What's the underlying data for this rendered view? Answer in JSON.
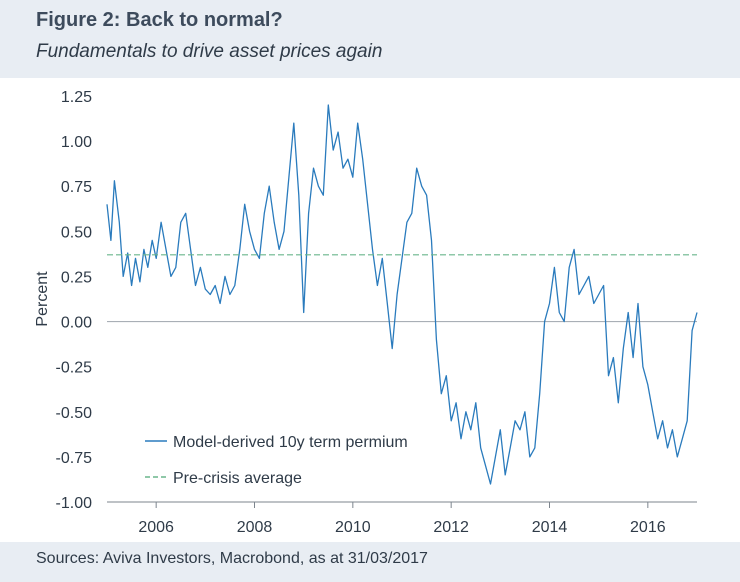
{
  "figure": {
    "title": "Figure 2: Back to normal?",
    "subtitle": "Fundamentals to drive asset prices again",
    "source": "Sources: Aviva Investors, Macrobond, as at 31/03/2017"
  },
  "colors": {
    "background": "#e8edf3",
    "series": "#2a7bbd",
    "average": "#6ab58c",
    "zero_line": "#a9afb6",
    "text": "#2f3b48"
  },
  "chart_data": {
    "type": "line",
    "title": "",
    "xlabel": "",
    "ylabel": "Percent",
    "xlim": [
      2005.0,
      2017.0
    ],
    "ylim": [
      -1.0,
      1.25
    ],
    "x_ticks": [
      2006,
      2008,
      2010,
      2012,
      2014,
      2016
    ],
    "x_tick_labels": [
      "2006",
      "2008",
      "2010",
      "2012",
      "2014",
      "2016"
    ],
    "y_ticks": [
      1.25,
      1.0,
      0.75,
      0.5,
      0.25,
      0.0,
      -0.25,
      -0.5,
      -0.75,
      -1.0
    ],
    "y_tick_labels": [
      "1.25",
      "1.00",
      "0.75",
      "0.50",
      "0.25",
      "0.00",
      "-0.25",
      "-0.50",
      "-0.75",
      "-1.00"
    ],
    "grid": false,
    "legend_position": "bottom-left",
    "series": [
      {
        "name": "Model-derived 10y term permium",
        "color": "#2a7bbd",
        "style": "solid",
        "x": [
          2005.0,
          2005.08,
          2005.15,
          2005.25,
          2005.33,
          2005.42,
          2005.5,
          2005.58,
          2005.67,
          2005.75,
          2005.83,
          2005.92,
          2006.0,
          2006.1,
          2006.2,
          2006.3,
          2006.4,
          2006.5,
          2006.6,
          2006.7,
          2006.8,
          2006.9,
          2007.0,
          2007.1,
          2007.2,
          2007.3,
          2007.4,
          2007.5,
          2007.6,
          2007.7,
          2007.8,
          2007.9,
          2008.0,
          2008.1,
          2008.2,
          2008.3,
          2008.4,
          2008.5,
          2008.6,
          2008.7,
          2008.8,
          2008.9,
          2009.0,
          2009.1,
          2009.2,
          2009.3,
          2009.4,
          2009.5,
          2009.6,
          2009.7,
          2009.8,
          2009.9,
          2010.0,
          2010.1,
          2010.2,
          2010.3,
          2010.4,
          2010.5,
          2010.6,
          2010.7,
          2010.8,
          2010.9,
          2011.0,
          2011.1,
          2011.2,
          2011.3,
          2011.4,
          2011.5,
          2011.6,
          2011.7,
          2011.8,
          2011.9,
          2012.0,
          2012.1,
          2012.2,
          2012.3,
          2012.4,
          2012.5,
          2012.6,
          2012.7,
          2012.8,
          2012.9,
          2013.0,
          2013.1,
          2013.2,
          2013.3,
          2013.4,
          2013.5,
          2013.6,
          2013.7,
          2013.8,
          2013.9,
          2014.0,
          2014.1,
          2014.2,
          2014.3,
          2014.4,
          2014.5,
          2014.6,
          2014.7,
          2014.8,
          2014.9,
          2015.0,
          2015.1,
          2015.2,
          2015.3,
          2015.4,
          2015.5,
          2015.6,
          2015.7,
          2015.8,
          2015.9,
          2016.0,
          2016.1,
          2016.2,
          2016.3,
          2016.4,
          2016.5,
          2016.6,
          2016.7,
          2016.8,
          2016.9,
          2017.0
        ],
        "values": [
          0.65,
          0.45,
          0.78,
          0.55,
          0.25,
          0.38,
          0.2,
          0.35,
          0.22,
          0.4,
          0.3,
          0.45,
          0.35,
          0.55,
          0.4,
          0.25,
          0.3,
          0.55,
          0.6,
          0.4,
          0.2,
          0.3,
          0.18,
          0.15,
          0.2,
          0.1,
          0.25,
          0.15,
          0.2,
          0.4,
          0.65,
          0.5,
          0.4,
          0.35,
          0.6,
          0.75,
          0.55,
          0.4,
          0.5,
          0.8,
          1.1,
          0.7,
          0.05,
          0.6,
          0.85,
          0.75,
          0.7,
          1.2,
          0.95,
          1.05,
          0.85,
          0.9,
          0.8,
          1.1,
          0.9,
          0.65,
          0.4,
          0.2,
          0.35,
          0.1,
          -0.15,
          0.15,
          0.35,
          0.55,
          0.6,
          0.85,
          0.75,
          0.7,
          0.45,
          -0.1,
          -0.4,
          -0.3,
          -0.55,
          -0.45,
          -0.65,
          -0.5,
          -0.6,
          -0.45,
          -0.7,
          -0.8,
          -0.9,
          -0.75,
          -0.6,
          -0.85,
          -0.7,
          -0.55,
          -0.6,
          -0.5,
          -0.75,
          -0.7,
          -0.4,
          0.0,
          0.1,
          0.3,
          0.05,
          0.0,
          0.3,
          0.4,
          0.15,
          0.2,
          0.25,
          0.1,
          0.15,
          0.2,
          -0.3,
          -0.2,
          -0.45,
          -0.15,
          0.05,
          -0.2,
          0.1,
          -0.25,
          -0.35,
          -0.5,
          -0.65,
          -0.55,
          -0.7,
          -0.6,
          -0.75,
          -0.65,
          -0.55,
          -0.05,
          0.05
        ]
      },
      {
        "name": "Pre-crisis average",
        "color": "#6ab58c",
        "style": "dashed",
        "x": [
          2005.0,
          2017.0
        ],
        "values": [
          0.37,
          0.37
        ]
      }
    ]
  }
}
